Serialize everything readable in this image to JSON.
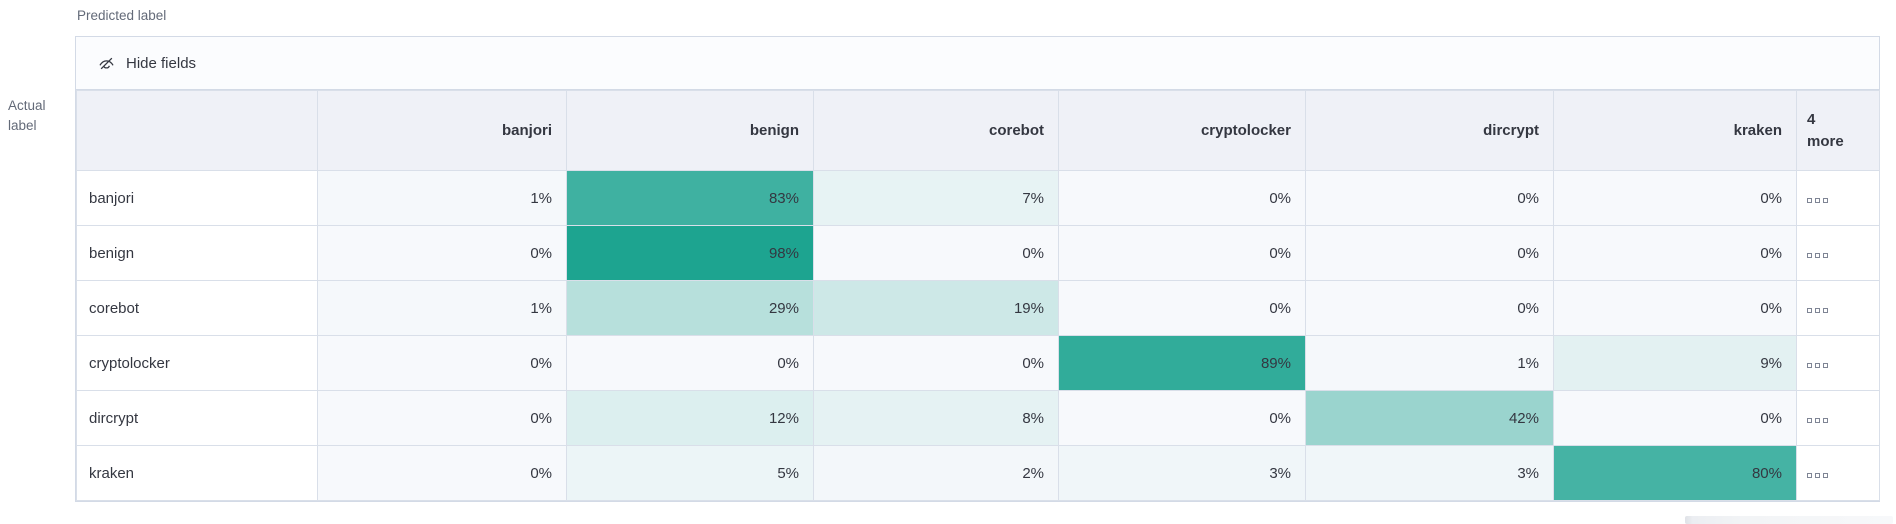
{
  "axes": {
    "predicted_label": "Predicted label",
    "actual_label": "Actual label"
  },
  "toolbar": {
    "hide_fields_label": "Hide fields",
    "icon": "eye-closed-icon"
  },
  "more_column": {
    "header_label": "4 more",
    "cell_icon": "boxes-horizontal-icon"
  },
  "colors": {
    "heat_base": "#19a28e",
    "cell_zero_bg": "#f7f9fc",
    "header_bg": "#eff1f7",
    "panel_border": "#d3dae6",
    "text": "#343741",
    "secondary_text": "#636a78"
  },
  "chart_data": {
    "type": "heatmap",
    "title": "Confusion matrix (Predicted label vs Actual label)",
    "x_axis_title": "Predicted label",
    "y_axis_title": "Actual label",
    "columns": [
      "banjori",
      "benign",
      "corebot",
      "cryptolocker",
      "dircrypt",
      "kraken"
    ],
    "hidden_columns_note": "4 more",
    "rows": [
      {
        "label": "banjori",
        "values_pct": [
          1,
          83,
          7,
          0,
          0,
          0
        ]
      },
      {
        "label": "benign",
        "values_pct": [
          0,
          98,
          0,
          0,
          0,
          0
        ]
      },
      {
        "label": "corebot",
        "values_pct": [
          1,
          29,
          19,
          0,
          0,
          0
        ]
      },
      {
        "label": "cryptolocker",
        "values_pct": [
          0,
          0,
          0,
          89,
          1,
          9
        ]
      },
      {
        "label": "dircrypt",
        "values_pct": [
          0,
          12,
          8,
          0,
          42,
          0
        ]
      },
      {
        "label": "kraken",
        "values_pct": [
          0,
          5,
          2,
          3,
          3,
          80
        ]
      }
    ],
    "cell_value_suffix": "%",
    "color_scale": "white-to-teal, opacity proportional to percentage"
  }
}
